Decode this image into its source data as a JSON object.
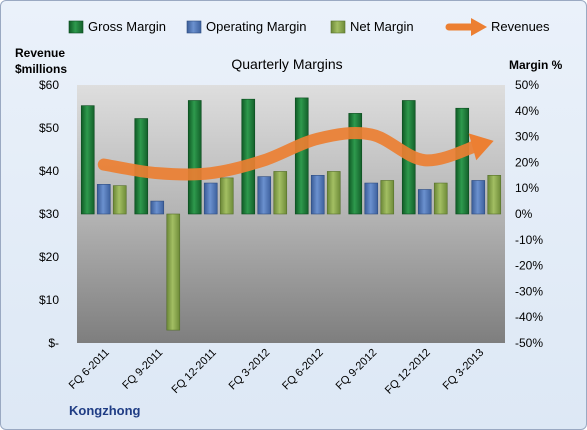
{
  "chart_data": {
    "type": "bar",
    "title": "Quarterly Margins",
    "left_axis_label_line1": "Revenue",
    "left_axis_label_line2": "$millions",
    "right_axis_label": "Margin %",
    "company_label": "Kongzhong",
    "categories": [
      "FQ 6-2011",
      "FQ 9-2011",
      "FQ 12-2011",
      "FQ 3-2012",
      "FQ 6-2012",
      "FQ 9-2012",
      "FQ 12-2012",
      "FQ 3-2013"
    ],
    "left_ticks": [
      "$-",
      "$10",
      "$20",
      "$30",
      "$40",
      "$50",
      "$60"
    ],
    "right_ticks": [
      "-50%",
      "-40%",
      "-30%",
      "-20%",
      "-10%",
      "0%",
      "10%",
      "20%",
      "30%",
      "40%",
      "50%"
    ],
    "ylim_left": [
      0,
      60
    ],
    "ylim_right": [
      -50,
      50
    ],
    "legend_position": "top",
    "grid": false,
    "series": [
      {
        "name": "Gross Margin",
        "axis": "right",
        "kind": "bar",
        "color": "#1e7b3a",
        "values": [
          42,
          37,
          44,
          44.5,
          45,
          39,
          44,
          41
        ]
      },
      {
        "name": "Operating Margin",
        "axis": "right",
        "kind": "bar",
        "color": "#4f77b8",
        "values": [
          11.5,
          5,
          12,
          14.5,
          15,
          12,
          9.5,
          13
        ]
      },
      {
        "name": "Net Margin",
        "axis": "right",
        "kind": "bar",
        "color": "#8aa84a",
        "values": [
          11,
          -45,
          14,
          16.5,
          16.5,
          13,
          12,
          15
        ]
      },
      {
        "name": "Revenues",
        "axis": "left",
        "kind": "line",
        "color": "#ec7f32",
        "values": [
          41.5,
          39.5,
          39.5,
          42.5,
          47.5,
          48.5,
          42.5,
          46
        ]
      }
    ]
  }
}
